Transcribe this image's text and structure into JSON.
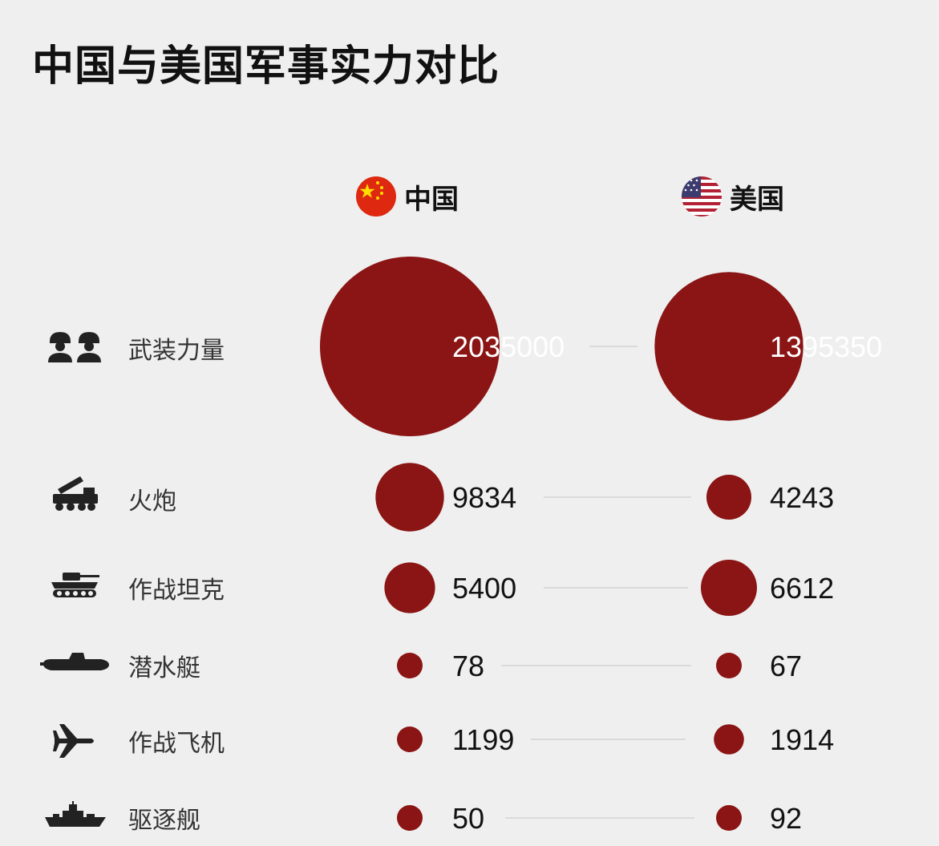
{
  "title": "中国与美国军事实力对比",
  "countries": [
    {
      "name": "中国",
      "flag_icon": "china-flag-icon"
    },
    {
      "name": "美国",
      "flag_icon": "usa-flag-icon"
    }
  ],
  "colors": {
    "bubble": "#8b1414",
    "connector": "#d4d4d4",
    "text": "#111111",
    "label": "#333333"
  },
  "chart_data": {
    "type": "bubble",
    "title": "中国与美国军事实力对比",
    "series": [
      {
        "name": "中国",
        "values": [
          2035000,
          9834,
          5400,
          78,
          1199,
          50
        ]
      },
      {
        "name": "美国",
        "values": [
          1395350,
          4243,
          6612,
          67,
          1914,
          92
        ]
      }
    ],
    "categories": [
      "武装力量",
      "火炮",
      "作战坦克",
      "潜水艇",
      "作战飞机",
      "驱逐舰"
    ],
    "category_icons": [
      "soldiers-icon",
      "rocket-artillery-icon",
      "tank-icon",
      "submarine-icon",
      "fighter-jet-icon",
      "destroyer-ship-icon"
    ]
  }
}
